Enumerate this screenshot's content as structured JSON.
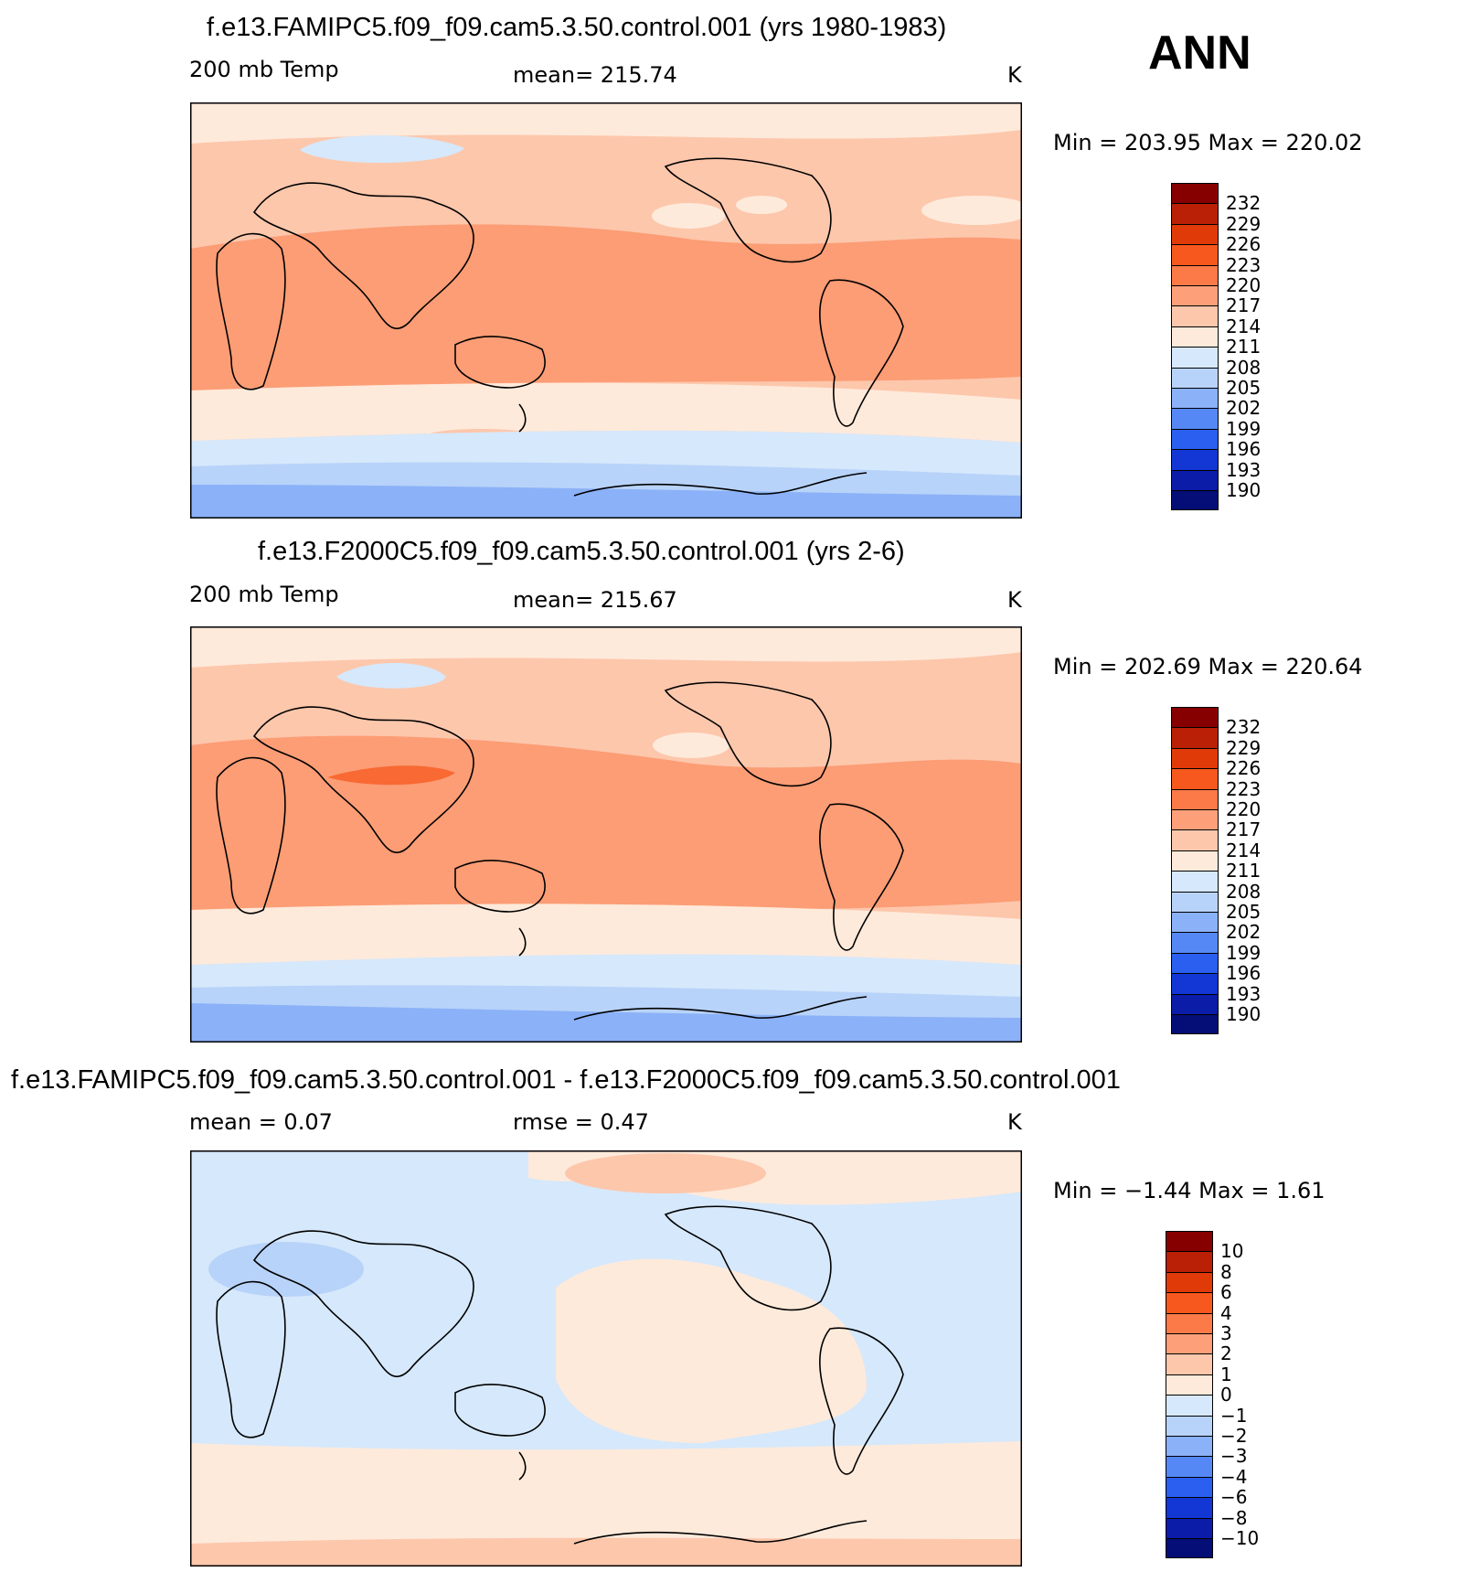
{
  "season": "ANN",
  "panels": [
    {
      "title": "f.e13.FAMIPC5.f09_f09.cam5.3.50.control.001 (yrs 1980-1983)",
      "left_label": "200 mb Temp",
      "center_label": "mean=  215.74",
      "units": "K",
      "minmax": "Min  =  203.95  Max  =  220.02",
      "colorbar": {
        "labels": [
          "232",
          "229",
          "226",
          "223",
          "220",
          "217",
          "214",
          "211",
          "208",
          "205",
          "202",
          "199",
          "196",
          "193",
          "190"
        ],
        "colors": [
          "#860000",
          "#b92006",
          "#e03a09",
          "#f7581d",
          "#fb7a48",
          "#fda07a",
          "#fdc7ac",
          "#feeadb",
          "#d6e8fb",
          "#b8d3f9",
          "#8bb1f8",
          "#5688f5",
          "#2a5ff0",
          "#1237d5",
          "#0a1ca8",
          "#040e76"
        ]
      }
    },
    {
      "title": "f.e13.F2000C5.f09_f09.cam5.3.50.control.001 (yrs 2-6)",
      "left_label": "200 mb Temp",
      "center_label": "mean=  215.67",
      "units": "K",
      "minmax": "Min  =  202.69  Max  =  220.64",
      "colorbar": {
        "labels": [
          "232",
          "229",
          "226",
          "223",
          "220",
          "217",
          "214",
          "211",
          "208",
          "205",
          "202",
          "199",
          "196",
          "193",
          "190"
        ],
        "colors": [
          "#860000",
          "#b92006",
          "#e03a09",
          "#f7581d",
          "#fb7a48",
          "#fda07a",
          "#fdc7ac",
          "#feeadb",
          "#d6e8fb",
          "#b8d3f9",
          "#8bb1f8",
          "#5688f5",
          "#2a5ff0",
          "#1237d5",
          "#0a1ca8",
          "#040e76"
        ]
      }
    },
    {
      "title": "f.e13.FAMIPC5.f09_f09.cam5.3.50.control.001 - f.e13.F2000C5.f09_f09.cam5.3.50.control.001",
      "left_label": "mean =     0.07",
      "center_label": "rmse =     0.47",
      "units": "K",
      "minmax": "Min  =   −1.44  Max  =     1.61",
      "colorbar": {
        "labels": [
          "10",
          "8",
          "6",
          "4",
          "3",
          "2",
          "1",
          "0",
          "−1",
          "−2",
          "−3",
          "−4",
          "−6",
          "−8",
          "−10"
        ],
        "colors": [
          "#860000",
          "#b92006",
          "#e03a09",
          "#f7581d",
          "#fb7a48",
          "#fda07a",
          "#fdc7ac",
          "#feeadb",
          "#d6e8fb",
          "#b8d3f9",
          "#8bb1f8",
          "#5688f5",
          "#2a5ff0",
          "#1237d5",
          "#0a1ca8",
          "#040e76"
        ]
      }
    }
  ]
}
